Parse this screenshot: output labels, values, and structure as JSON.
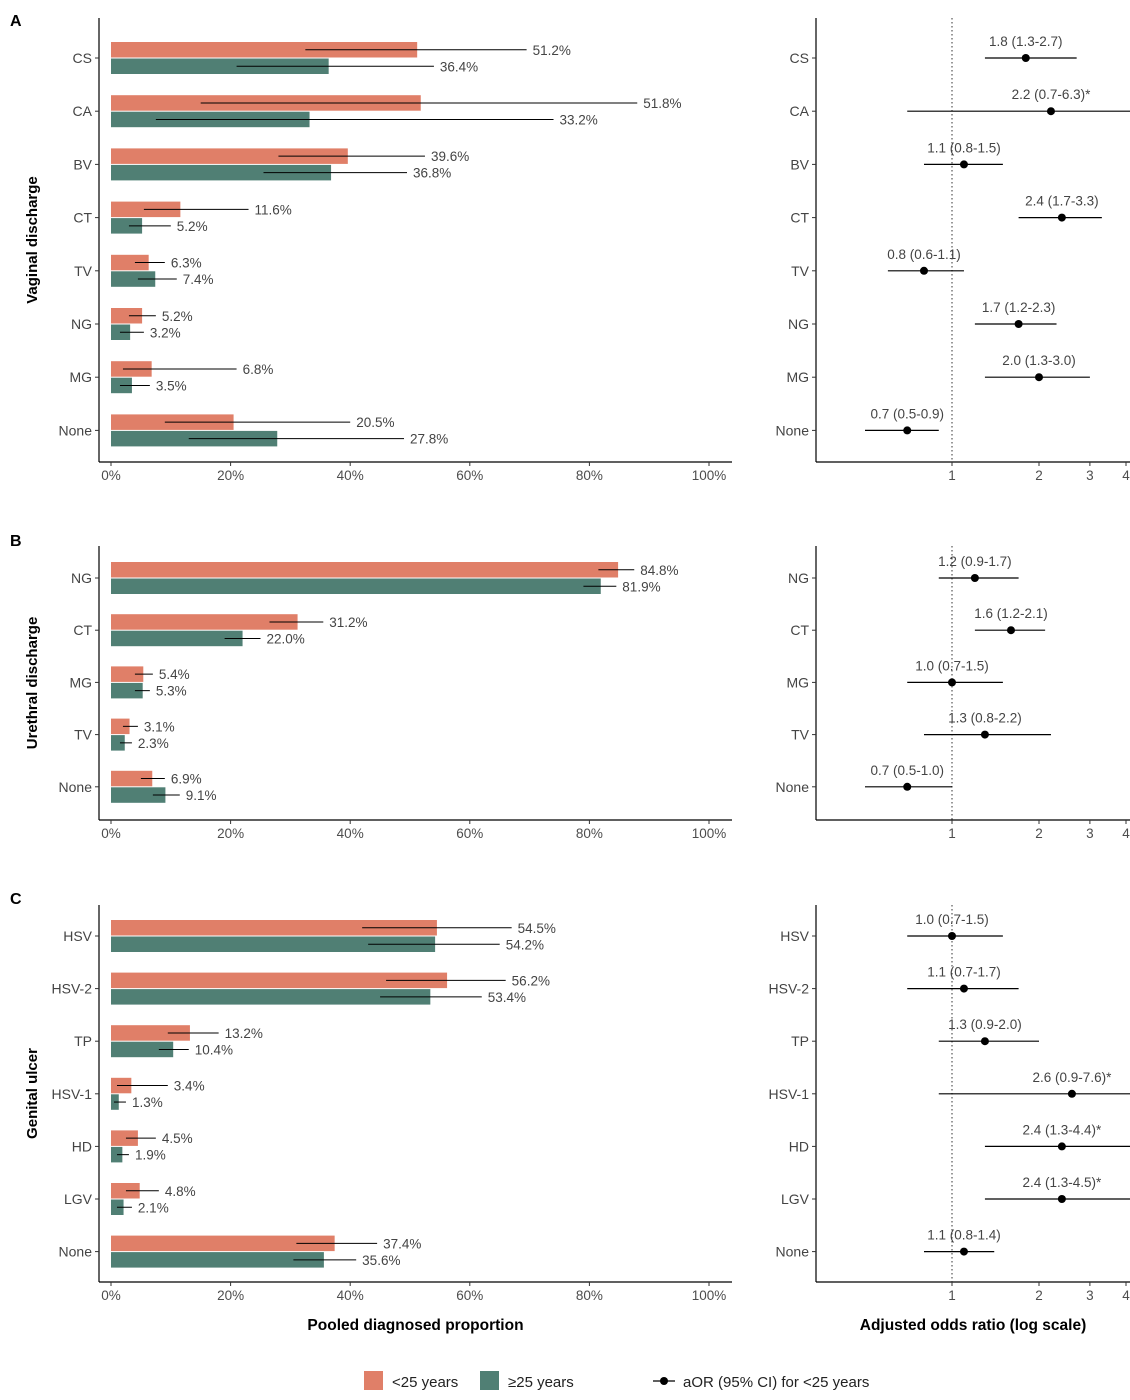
{
  "colors": {
    "young": "#E07F68",
    "old": "#507F74",
    "point": "#000000"
  },
  "legend": {
    "young_label": "<25 years",
    "old_label": "≥25 years",
    "aor_label": "aOR (95% CI) for <25 years"
  },
  "chart_data": [
    {
      "panel": "A",
      "type": "bar",
      "orientation": "horizontal",
      "ylabel": "Vaginal discharge",
      "xlabel": "",
      "xlim": [
        0,
        100
      ],
      "x_ticks": [
        "0%",
        "20%",
        "40%",
        "60%",
        "80%",
        "100%"
      ],
      "categories": [
        "CS",
        "CA",
        "BV",
        "CT",
        "TV",
        "NG",
        "MG",
        "None"
      ],
      "series": [
        {
          "name": "<25 years",
          "values": [
            51.2,
            51.8,
            39.6,
            11.6,
            6.3,
            5.2,
            6.8,
            20.5
          ],
          "labels": [
            "51.2%",
            "51.8%",
            "39.6%",
            "11.6%",
            "6.3%",
            "5.2%",
            "6.8%",
            "20.5%"
          ],
          "ci_low": [
            32.5,
            15.0,
            28.0,
            5.5,
            4.0,
            3.0,
            2.0,
            9.0
          ],
          "ci_high": [
            69.5,
            88.0,
            52.5,
            23.0,
            9.0,
            7.5,
            21.0,
            40.0
          ]
        },
        {
          "name": "≥25 years",
          "values": [
            36.4,
            33.2,
            36.8,
            5.2,
            7.4,
            3.2,
            3.5,
            27.8
          ],
          "labels": [
            "36.4%",
            "33.2%",
            "36.8%",
            "5.2%",
            "7.4%",
            "3.2%",
            "3.5%",
            "27.8%"
          ],
          "ci_low": [
            21.0,
            7.5,
            25.5,
            3.0,
            4.5,
            1.5,
            1.5,
            13.0
          ],
          "ci_high": [
            54.0,
            74.0,
            49.5,
            10.0,
            11.0,
            5.5,
            6.5,
            49.0
          ]
        }
      ]
    },
    {
      "panel": "A",
      "type": "scatter",
      "xlabel": "",
      "x_scale": "log",
      "xlim": [
        0.55,
        4.2
      ],
      "x_ticks": [
        "1",
        "2",
        "3",
        "4"
      ],
      "reference_line": 1,
      "categories": [
        "CS",
        "CA",
        "BV",
        "CT",
        "TV",
        "NG",
        "MG",
        "None"
      ],
      "points": [
        {
          "est": 1.8,
          "low": 1.3,
          "high": 2.7,
          "label": "1.8 (1.3-2.7)"
        },
        {
          "est": 2.2,
          "low": 0.7,
          "high": 6.3,
          "label": "2.2 (0.7-6.3)*"
        },
        {
          "est": 1.1,
          "low": 0.8,
          "high": 1.5,
          "label": "1.1 (0.8-1.5)"
        },
        {
          "est": 2.4,
          "low": 1.7,
          "high": 3.3,
          "label": "2.4 (1.7-3.3)"
        },
        {
          "est": 0.8,
          "low": 0.6,
          "high": 1.1,
          "label": "0.8 (0.6-1.1)"
        },
        {
          "est": 1.7,
          "low": 1.2,
          "high": 2.3,
          "label": "1.7 (1.2-2.3)"
        },
        {
          "est": 2.0,
          "low": 1.3,
          "high": 3.0,
          "label": "2.0 (1.3-3.0)"
        },
        {
          "est": 0.7,
          "low": 0.5,
          "high": 0.9,
          "label": "0.7 (0.5-0.9)"
        }
      ]
    },
    {
      "panel": "B",
      "type": "bar",
      "orientation": "horizontal",
      "ylabel": "Urethral discharge",
      "xlabel": "",
      "xlim": [
        0,
        100
      ],
      "x_ticks": [
        "0%",
        "20%",
        "40%",
        "60%",
        "80%",
        "100%"
      ],
      "categories": [
        "NG",
        "CT",
        "MG",
        "TV",
        "None"
      ],
      "series": [
        {
          "name": "<25 years",
          "values": [
            84.8,
            31.2,
            5.4,
            3.1,
            6.9
          ],
          "labels": [
            "84.8%",
            "31.2%",
            "5.4%",
            "3.1%",
            "6.9%"
          ],
          "ci_low": [
            81.5,
            26.5,
            4.0,
            2.0,
            5.0
          ],
          "ci_high": [
            87.5,
            35.5,
            7.0,
            4.5,
            9.0
          ]
        },
        {
          "name": "≥25 years",
          "values": [
            81.9,
            22.0,
            5.3,
            2.3,
            9.1
          ],
          "labels": [
            "81.9%",
            "22.0%",
            "5.3%",
            "2.3%",
            "9.1%"
          ],
          "ci_low": [
            79.0,
            19.0,
            4.0,
            1.5,
            7.0
          ],
          "ci_high": [
            84.5,
            25.0,
            6.5,
            3.5,
            11.5
          ]
        }
      ]
    },
    {
      "panel": "B",
      "type": "scatter",
      "xlabel": "",
      "x_scale": "log",
      "xlim": [
        0.55,
        4.2
      ],
      "x_ticks": [
        "1",
        "2",
        "3",
        "4"
      ],
      "reference_line": 1,
      "categories": [
        "NG",
        "CT",
        "MG",
        "TV",
        "None"
      ],
      "points": [
        {
          "est": 1.2,
          "low": 0.9,
          "high": 1.7,
          "label": "1.2 (0.9-1.7)"
        },
        {
          "est": 1.6,
          "low": 1.2,
          "high": 2.1,
          "label": "1.6 (1.2-2.1)"
        },
        {
          "est": 1.0,
          "low": 0.7,
          "high": 1.5,
          "label": "1.0 (0.7-1.5)"
        },
        {
          "est": 1.3,
          "low": 0.8,
          "high": 2.2,
          "label": "1.3 (0.8-2.2)"
        },
        {
          "est": 0.7,
          "low": 0.5,
          "high": 1.0,
          "label": "0.7 (0.5-1.0)"
        }
      ]
    },
    {
      "panel": "C",
      "type": "bar",
      "orientation": "horizontal",
      "ylabel": "Genital ulcer",
      "xlabel": "Pooled diagnosed proportion",
      "xlim": [
        0,
        100
      ],
      "x_ticks": [
        "0%",
        "20%",
        "40%",
        "60%",
        "80%",
        "100%"
      ],
      "categories": [
        "HSV",
        "HSV-2",
        "TP",
        "HSV-1",
        "HD",
        "LGV",
        "None"
      ],
      "series": [
        {
          "name": "<25 years",
          "values": [
            54.5,
            56.2,
            13.2,
            3.4,
            4.5,
            4.8,
            37.4
          ],
          "labels": [
            "54.5%",
            "56.2%",
            "13.2%",
            "3.4%",
            "4.5%",
            "4.8%",
            "37.4%"
          ],
          "ci_low": [
            42.0,
            46.0,
            9.5,
            1.0,
            2.5,
            2.5,
            31.0
          ],
          "ci_high": [
            67.0,
            66.0,
            18.0,
            9.5,
            7.5,
            8.0,
            44.5
          ]
        },
        {
          "name": "≥25 years",
          "values": [
            54.2,
            53.4,
            10.4,
            1.3,
            1.9,
            2.1,
            35.6
          ],
          "labels": [
            "54.2%",
            "53.4%",
            "10.4%",
            "1.3%",
            "1.9%",
            "2.1%",
            "35.6%"
          ],
          "ci_low": [
            43.0,
            45.0,
            8.0,
            0.5,
            1.0,
            1.0,
            30.5
          ],
          "ci_high": [
            65.0,
            62.0,
            13.0,
            2.5,
            3.0,
            3.5,
            41.0
          ]
        }
      ]
    },
    {
      "panel": "C",
      "type": "scatter",
      "xlabel": "Adjusted odds ratio (log scale)",
      "x_scale": "log",
      "xlim": [
        0.55,
        4.2
      ],
      "x_ticks": [
        "1",
        "2",
        "3",
        "4"
      ],
      "reference_line": 1,
      "categories": [
        "HSV",
        "HSV-2",
        "TP",
        "HSV-1",
        "HD",
        "LGV",
        "None"
      ],
      "points": [
        {
          "est": 1.0,
          "low": 0.7,
          "high": 1.5,
          "label": "1.0 (0.7-1.5)"
        },
        {
          "est": 1.1,
          "low": 0.7,
          "high": 1.7,
          "label": "1.1 (0.7-1.7)"
        },
        {
          "est": 1.3,
          "low": 0.9,
          "high": 2.0,
          "label": "1.3 (0.9-2.0)"
        },
        {
          "est": 2.6,
          "low": 0.9,
          "high": 7.6,
          "label": "2.6 (0.9-7.6)*"
        },
        {
          "est": 2.4,
          "low": 1.3,
          "high": 4.4,
          "label": "2.4 (1.3-4.4)*"
        },
        {
          "est": 2.4,
          "low": 1.3,
          "high": 4.5,
          "label": "2.4 (1.3-4.5)*"
        },
        {
          "est": 1.1,
          "low": 0.8,
          "high": 1.4,
          "label": "1.1 (0.8-1.4)"
        }
      ]
    }
  ]
}
